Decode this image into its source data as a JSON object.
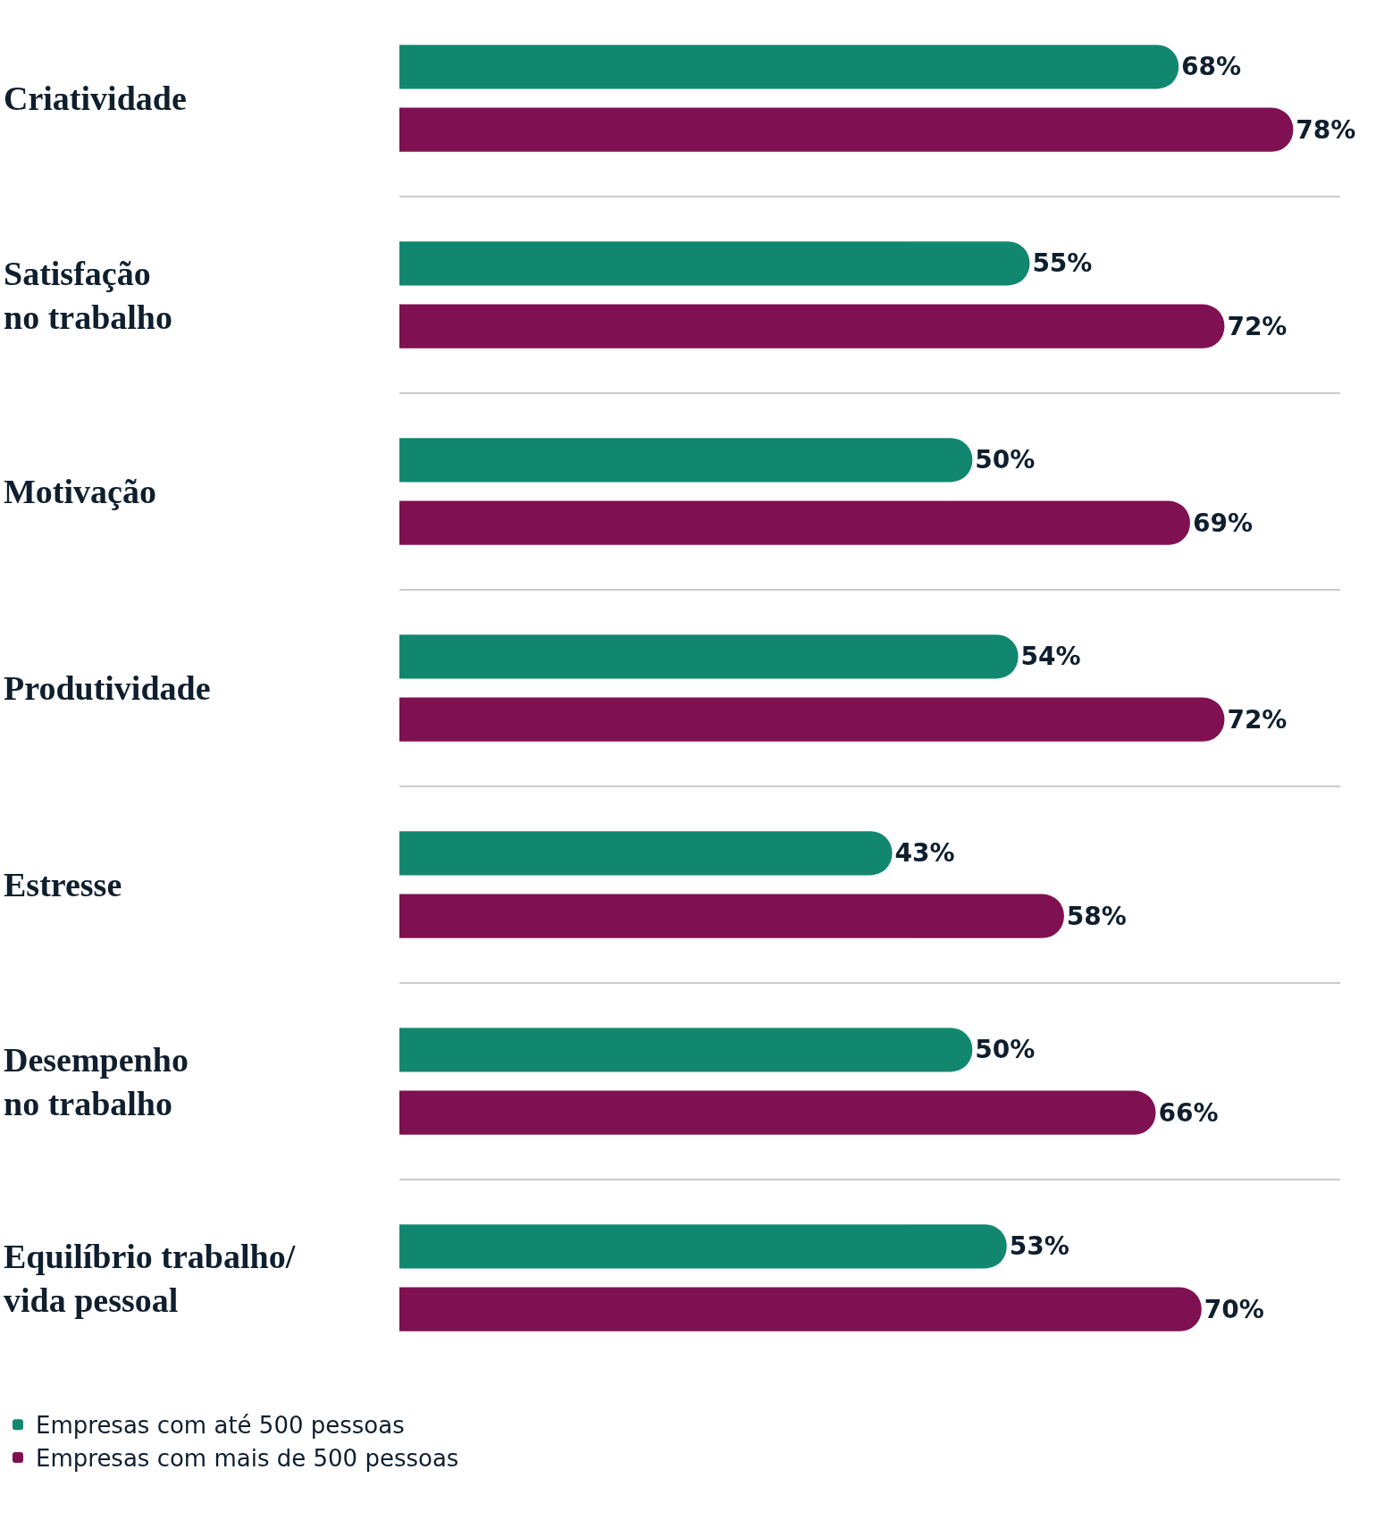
{
  "chart_data": {
    "type": "bar",
    "orientation": "horizontal",
    "categories": [
      "Criatividade",
      "Satisfação\nno trabalho",
      "Motivação",
      "Produtividade",
      "Estresse",
      "Desempenho\nno trabalho",
      "Equilíbrio trabalho/\nvida pessoal"
    ],
    "series": [
      {
        "name": "Empresas com até 500 pessoas",
        "color": "#12876f",
        "values": [
          68,
          55,
          50,
          54,
          43,
          50,
          53
        ],
        "value_labels": [
          "68%",
          "55%",
          "50%",
          "54%",
          "43%",
          "50%",
          "53%"
        ]
      },
      {
        "name": "Empresas com mais de 500 pessoas",
        "color": "#7f1152",
        "values": [
          78,
          72,
          69,
          72,
          58,
          66,
          70
        ],
        "value_labels": [
          "78%",
          "72%",
          "69%",
          "72%",
          "58%",
          "66%",
          "70%"
        ]
      }
    ],
    "grid": "y",
    "legend": "bottom left",
    "tick_labels": "y"
  }
}
